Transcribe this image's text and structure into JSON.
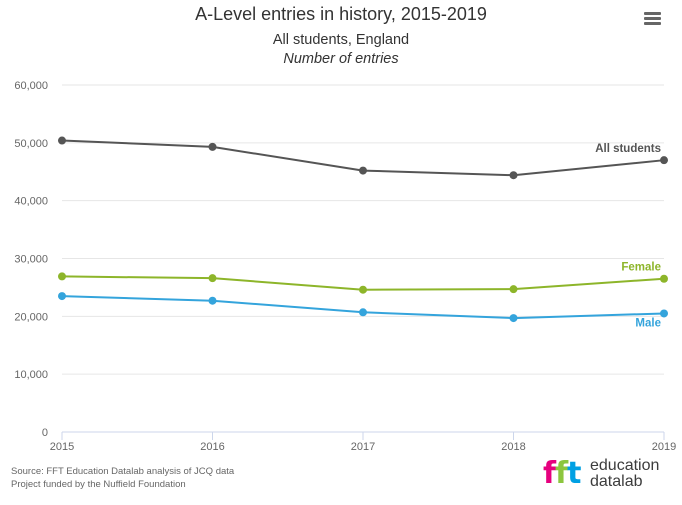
{
  "header": {
    "title": "A-Level entries in history, 2015-2019",
    "subtitle_line1": "All students, England",
    "subtitle_line2": "Number of entries"
  },
  "menu": {
    "icon": "hamburger-menu-icon"
  },
  "chart_data": {
    "type": "line",
    "title": "A-Level entries in history, 2015-2019",
    "subtitle": "All students, England",
    "xlabel": "",
    "ylabel": "Number of entries",
    "x": [
      "2015",
      "2016",
      "2017",
      "2018",
      "2019"
    ],
    "ylim": [
      0,
      60000
    ],
    "yticks": [
      0,
      10000,
      20000,
      30000,
      40000,
      50000,
      60000
    ],
    "ytick_labels": [
      "0",
      "10,000",
      "20,000",
      "30,000",
      "40,000",
      "50,000",
      "60,000"
    ],
    "grid": true,
    "legend": "none (series labelled at line ends)",
    "series": [
      {
        "name": "All students",
        "color": "#555555",
        "values": [
          50400,
          49300,
          45200,
          44400,
          47000
        ]
      },
      {
        "name": "Female",
        "color": "#8db52a",
        "values": [
          26900,
          26600,
          24600,
          24700,
          26500
        ]
      },
      {
        "name": "Male",
        "color": "#34a4dc",
        "values": [
          23500,
          22700,
          20700,
          19700,
          20500
        ]
      }
    ]
  },
  "credits": {
    "line1": "Source: FFT Education Datalab analysis of JCQ data",
    "line2": "Project funded by the Nuffield Foundation"
  },
  "logo": {
    "mark_f1": "f",
    "mark_f2": "f",
    "mark_t": "t",
    "word1": "education",
    "word2": "datalab",
    "colors": {
      "f1": "#e6007e",
      "f2": "#8cc63f",
      "t": "#00a0e3"
    }
  }
}
